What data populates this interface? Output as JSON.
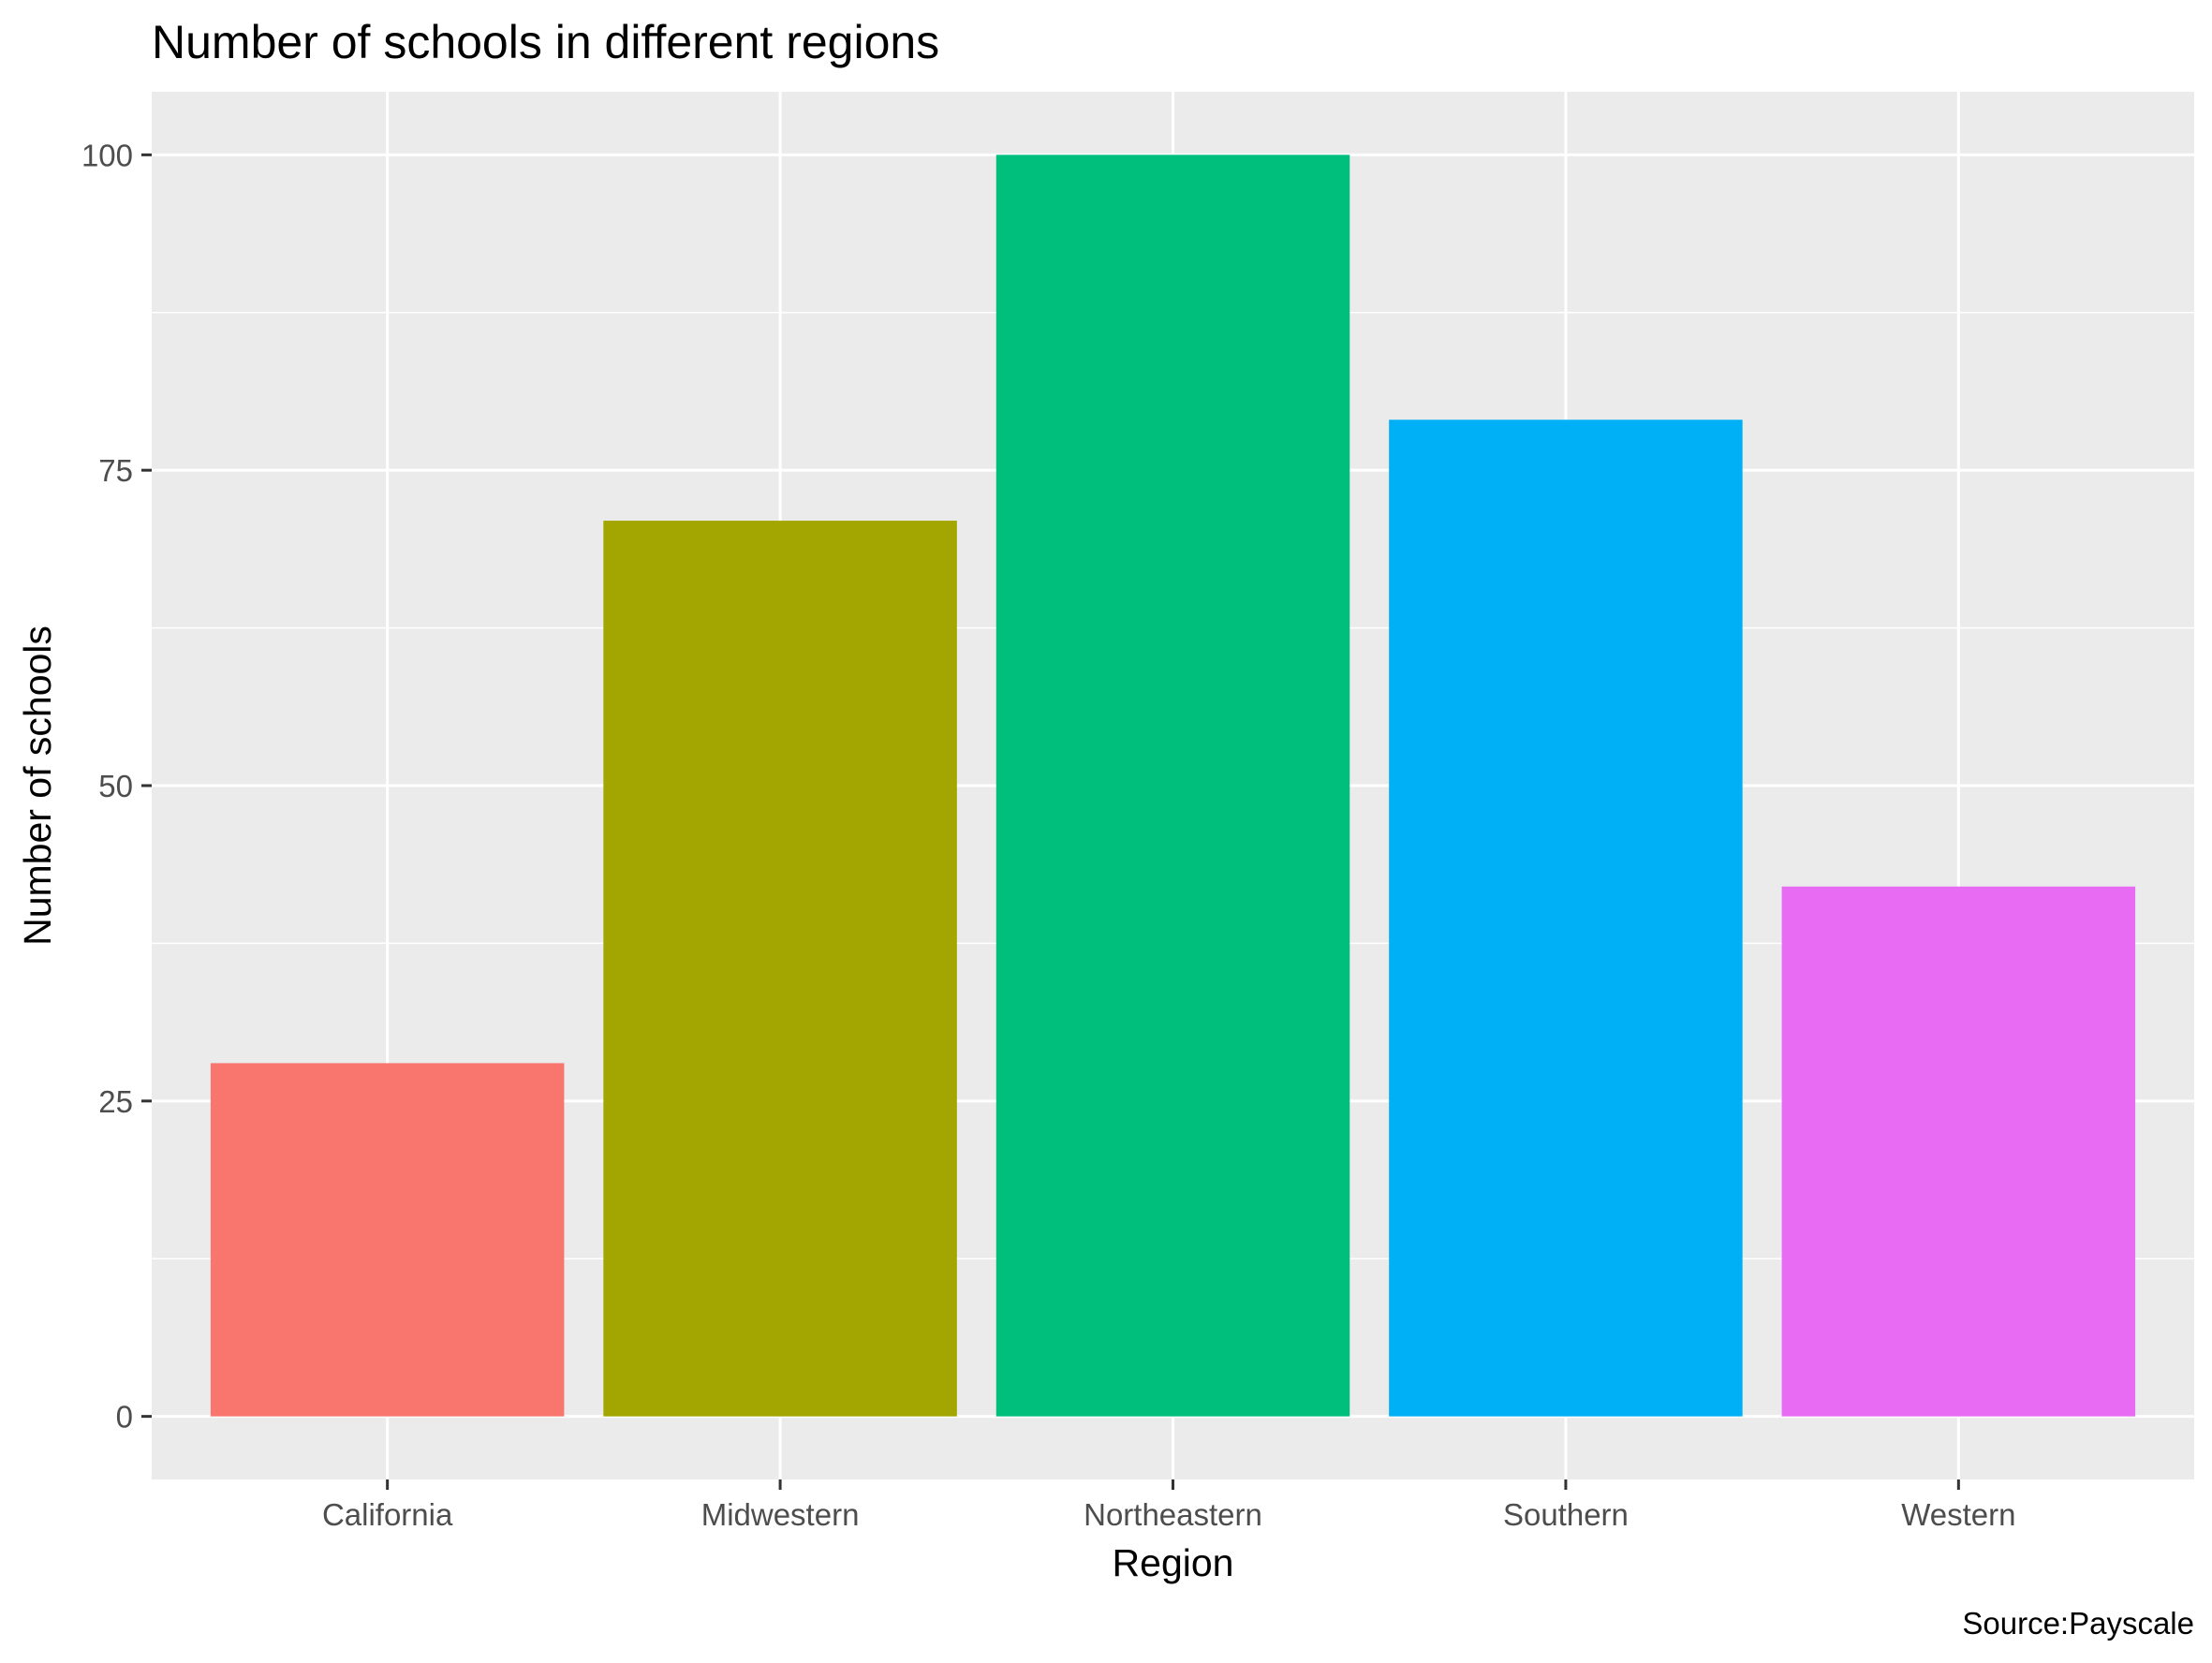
{
  "chart_data": {
    "type": "bar",
    "title": "Number of schools in different regions",
    "xlabel": "Region",
    "ylabel": "Number of schools",
    "caption": "Source:Payscale",
    "categories": [
      "California",
      "Midwestern",
      "Northeastern",
      "Southern",
      "Western"
    ],
    "values": [
      28,
      71,
      100,
      79,
      42
    ],
    "colors": [
      "#F8766D",
      "#A3A500",
      "#00BF7D",
      "#00B0F6",
      "#E76BF3"
    ],
    "ylim": [
      -5,
      105
    ],
    "yticks": [
      0,
      25,
      50,
      75,
      100
    ],
    "grid": true,
    "legend": "none"
  }
}
